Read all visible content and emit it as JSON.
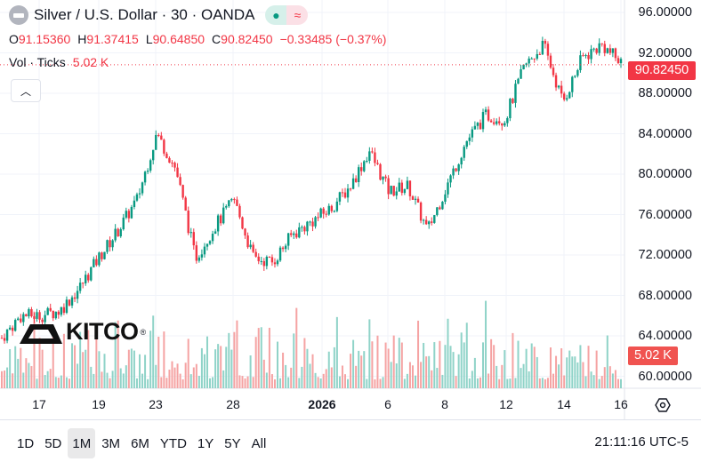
{
  "header": {
    "title": "Silver / U.S. Dollar · 30 · OANDA",
    "status_icon": "market-open-dot",
    "wave_icon": "≈"
  },
  "ohlc": {
    "o_label": "O",
    "o": "91.15360",
    "h_label": "H",
    "h": "91.37415",
    "l_label": "L",
    "l": "90.64850",
    "c_label": "C",
    "c": "90.82450",
    "change": "−0.33485 (−0.37%)"
  },
  "volume": {
    "label": "Vol · Ticks",
    "value": "5.02 K"
  },
  "logo": {
    "text": "KITCO"
  },
  "colors": {
    "up": "#089981",
    "down": "#f23645",
    "vol_up": "#8fd3c8",
    "vol_down": "#f5a3a3"
  },
  "chart_data": {
    "type": "candlestick",
    "price_axis": [
      "96.00000",
      "92.00000",
      "88.00000",
      "84.00000",
      "80.00000",
      "76.00000",
      "72.00000",
      "68.00000",
      "64.00000",
      "60.00000"
    ],
    "ylim": [
      60,
      96
    ],
    "last_price": "90.82450",
    "last_volume": "5.02 K",
    "time_axis": [
      "17",
      "19",
      "23",
      "28",
      "2026",
      "6",
      "8",
      "12",
      "14",
      "16"
    ],
    "price_path": [
      63.8,
      66,
      66,
      66.5,
      68.7,
      71.7,
      74.4,
      77.5,
      84,
      80.5,
      71.7,
      74.8,
      77.5,
      71.7,
      71.3,
      74,
      75.3,
      76.6,
      78.8,
      82.3,
      78.3,
      78.8,
      74.4,
      78.8,
      83.2,
      85.8,
      85.4,
      90.6,
      92.8,
      87.1,
      91.5,
      92.8,
      91
    ]
  },
  "ranges": [
    "1D",
    "5D",
    "1M",
    "3M",
    "6M",
    "YTD",
    "1Y",
    "5Y",
    "All"
  ],
  "active_range": "1M",
  "clock": "21:11:16 UTC-5"
}
